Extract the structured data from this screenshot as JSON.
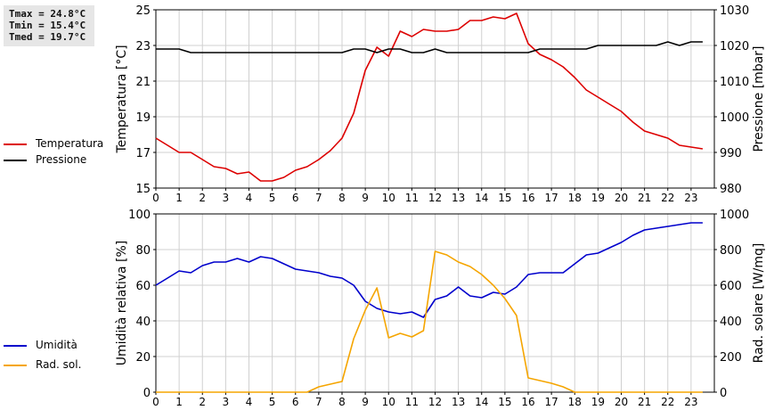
{
  "stats": {
    "tmax": "Tmax = 24.8°C",
    "tmin": "Tmin = 15.4°C",
    "tmed": "Tmed = 19.7°C"
  },
  "colors": {
    "temperature": "#dd0000",
    "pressure": "#000000",
    "humidity": "#0000cc",
    "radiation": "#f5a500",
    "grid": "#d0d0d0"
  },
  "chart_data": [
    {
      "type": "line",
      "ylabel": "Temperatura [°C]",
      "y2label": "Pressione [mbar]",
      "ylim": [
        15,
        25
      ],
      "y2lim": [
        980,
        1030
      ],
      "xlim": [
        0,
        24
      ],
      "yticks": [
        15,
        17,
        19,
        21,
        23,
        25
      ],
      "y2ticks": [
        980,
        990,
        1000,
        1010,
        1020,
        1030
      ],
      "xticks": [
        0,
        1,
        2,
        3,
        4,
        5,
        6,
        7,
        8,
        9,
        10,
        11,
        12,
        13,
        14,
        15,
        16,
        17,
        18,
        19,
        20,
        21,
        22,
        23
      ],
      "grid": true,
      "series": [
        {
          "name": "Temperatura",
          "axis": "left",
          "x": [
            0,
            0.5,
            1,
            1.5,
            2,
            2.5,
            3,
            3.5,
            4,
            4.5,
            5,
            5.5,
            6,
            6.5,
            7,
            7.5,
            8,
            8.5,
            9,
            9.5,
            10,
            10.5,
            11,
            11.5,
            12,
            12.5,
            13,
            13.5,
            14,
            14.5,
            15,
            15.5,
            16,
            16.5,
            17,
            17.5,
            18,
            18.5,
            19,
            19.5,
            20,
            20.5,
            21,
            21.5,
            22,
            22.5,
            23,
            23.5
          ],
          "values": [
            17.8,
            17.4,
            17.0,
            17.0,
            16.6,
            16.2,
            16.1,
            15.8,
            15.9,
            15.4,
            15.4,
            15.6,
            16.0,
            16.2,
            16.6,
            17.1,
            17.8,
            19.2,
            21.6,
            22.9,
            22.4,
            23.8,
            23.5,
            23.9,
            23.8,
            23.8,
            23.9,
            24.4,
            24.4,
            24.6,
            24.5,
            24.8,
            23.1,
            22.5,
            22.2,
            21.8,
            21.2,
            20.5,
            20.1,
            19.7,
            19.3,
            18.7,
            18.2,
            18.0,
            17.8,
            17.4,
            17.3,
            17.2
          ]
        },
        {
          "name": "Pressione",
          "axis": "right",
          "x": [
            0,
            0.5,
            1,
            1.5,
            2,
            2.5,
            3,
            3.5,
            4,
            4.5,
            5,
            5.5,
            6,
            6.5,
            7,
            7.5,
            8,
            8.5,
            9,
            9.5,
            10,
            10.5,
            11,
            11.5,
            12,
            12.5,
            13,
            13.5,
            14,
            14.5,
            15,
            15.5,
            16,
            16.5,
            17,
            17.5,
            18,
            18.5,
            19,
            19.5,
            20,
            20.5,
            21,
            21.5,
            22,
            22.5,
            23,
            23.5
          ],
          "values": [
            1019,
            1019,
            1019,
            1018,
            1018,
            1018,
            1018,
            1018,
            1018,
            1018,
            1018,
            1018,
            1018,
            1018,
            1018,
            1018,
            1018,
            1019,
            1019,
            1018,
            1019,
            1019,
            1018,
            1018,
            1019,
            1018,
            1018,
            1018,
            1018,
            1018,
            1018,
            1018,
            1018,
            1019,
            1019,
            1019,
            1019,
            1019,
            1020,
            1020,
            1020,
            1020,
            1020,
            1020,
            1021,
            1020,
            1021,
            1021
          ]
        }
      ]
    },
    {
      "type": "line",
      "ylabel": "Umidità relativa [%]",
      "y2label": "Rad. solare [W/mq]",
      "ylim": [
        0,
        100
      ],
      "y2lim": [
        0,
        1000
      ],
      "xlim": [
        0,
        24
      ],
      "yticks": [
        0,
        20,
        40,
        60,
        80,
        100
      ],
      "y2ticks": [
        0,
        200,
        400,
        600,
        800,
        1000
      ],
      "xticks": [
        0,
        1,
        2,
        3,
        4,
        5,
        6,
        7,
        8,
        9,
        10,
        11,
        12,
        13,
        14,
        15,
        16,
        17,
        18,
        19,
        20,
        21,
        22,
        23
      ],
      "grid": true,
      "series": [
        {
          "name": "Umidità",
          "axis": "left",
          "x": [
            0,
            0.5,
            1,
            1.5,
            2,
            2.5,
            3,
            3.5,
            4,
            4.5,
            5,
            5.5,
            6,
            6.5,
            7,
            7.5,
            8,
            8.5,
            9,
            9.5,
            10,
            10.5,
            11,
            11.5,
            12,
            12.5,
            13,
            13.5,
            14,
            14.5,
            15,
            15.5,
            16,
            16.5,
            17,
            17.5,
            18,
            18.5,
            19,
            19.5,
            20,
            20.5,
            21,
            21.5,
            22,
            22.5,
            23,
            23.5
          ],
          "values": [
            60,
            64,
            68,
            67,
            71,
            73,
            73,
            75,
            73,
            76,
            75,
            72,
            69,
            68,
            67,
            65,
            64,
            60,
            51,
            47,
            45,
            44,
            45,
            42,
            52,
            54,
            59,
            54,
            53,
            56,
            55,
            59,
            66,
            67,
            67,
            67,
            72,
            77,
            78,
            81,
            84,
            88,
            91,
            92,
            93,
            94,
            95,
            95
          ]
        },
        {
          "name": "Rad. sol.",
          "axis": "right",
          "x": [
            0,
            0.5,
            1,
            1.5,
            2,
            2.5,
            3,
            3.5,
            4,
            4.5,
            5,
            5.5,
            6,
            6.5,
            7,
            7.5,
            8,
            8.5,
            9,
            9.5,
            10,
            10.5,
            11,
            11.5,
            12,
            12.5,
            13,
            13.5,
            14,
            14.5,
            15,
            15.5,
            16,
            16.5,
            17,
            17.5,
            18,
            18.5,
            19,
            19.5,
            20,
            20.5,
            21,
            21.5,
            22,
            22.5,
            23,
            23.5
          ],
          "values": [
            0,
            0,
            0,
            0,
            0,
            0,
            0,
            0,
            0,
            0,
            0,
            0,
            0,
            0,
            30,
            45,
            60,
            300,
            460,
            585,
            305,
            330,
            310,
            345,
            790,
            770,
            730,
            705,
            660,
            600,
            525,
            430,
            80,
            65,
            50,
            30,
            0,
            0,
            0,
            0,
            0,
            0,
            0,
            0,
            0,
            0,
            0,
            0
          ]
        }
      ]
    }
  ]
}
